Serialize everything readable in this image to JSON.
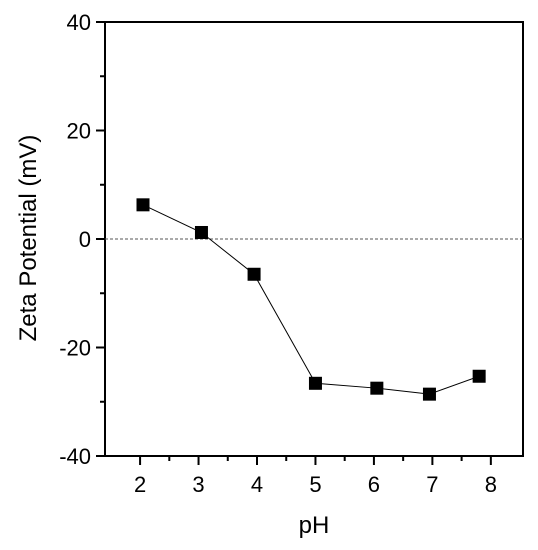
{
  "chart_data": {
    "type": "scatter",
    "xlabel": "pH",
    "ylabel": "Zeta Potential (mV)",
    "xlim": [
      1.4,
      8.55
    ],
    "ylim": [
      -40,
      40
    ],
    "x_ticks": [
      2,
      3,
      4,
      5,
      6,
      7,
      8
    ],
    "y_ticks": [
      40,
      20,
      0,
      -20,
      -40
    ],
    "x_tick_labels": [
      "2",
      "3",
      "4",
      "5",
      "6",
      "7",
      "8"
    ],
    "y_tick_labels": [
      "40",
      "20",
      "0",
      "-20",
      "-40"
    ],
    "grid": false,
    "legend": "none",
    "reference_line": {
      "y": 0,
      "style": "dashed"
    },
    "series": [
      {
        "marker": "square",
        "connected": true,
        "color": "#000000",
        "points": [
          {
            "x": 2.05,
            "y": 6.3
          },
          {
            "x": 3.05,
            "y": 1.2
          },
          {
            "x": 3.95,
            "y": -6.5
          },
          {
            "x": 5.0,
            "y": -26.6
          },
          {
            "x": 6.05,
            "y": -27.5
          },
          {
            "x": 6.95,
            "y": -28.6
          },
          {
            "x": 7.8,
            "y": -25.3
          }
        ]
      }
    ]
  }
}
